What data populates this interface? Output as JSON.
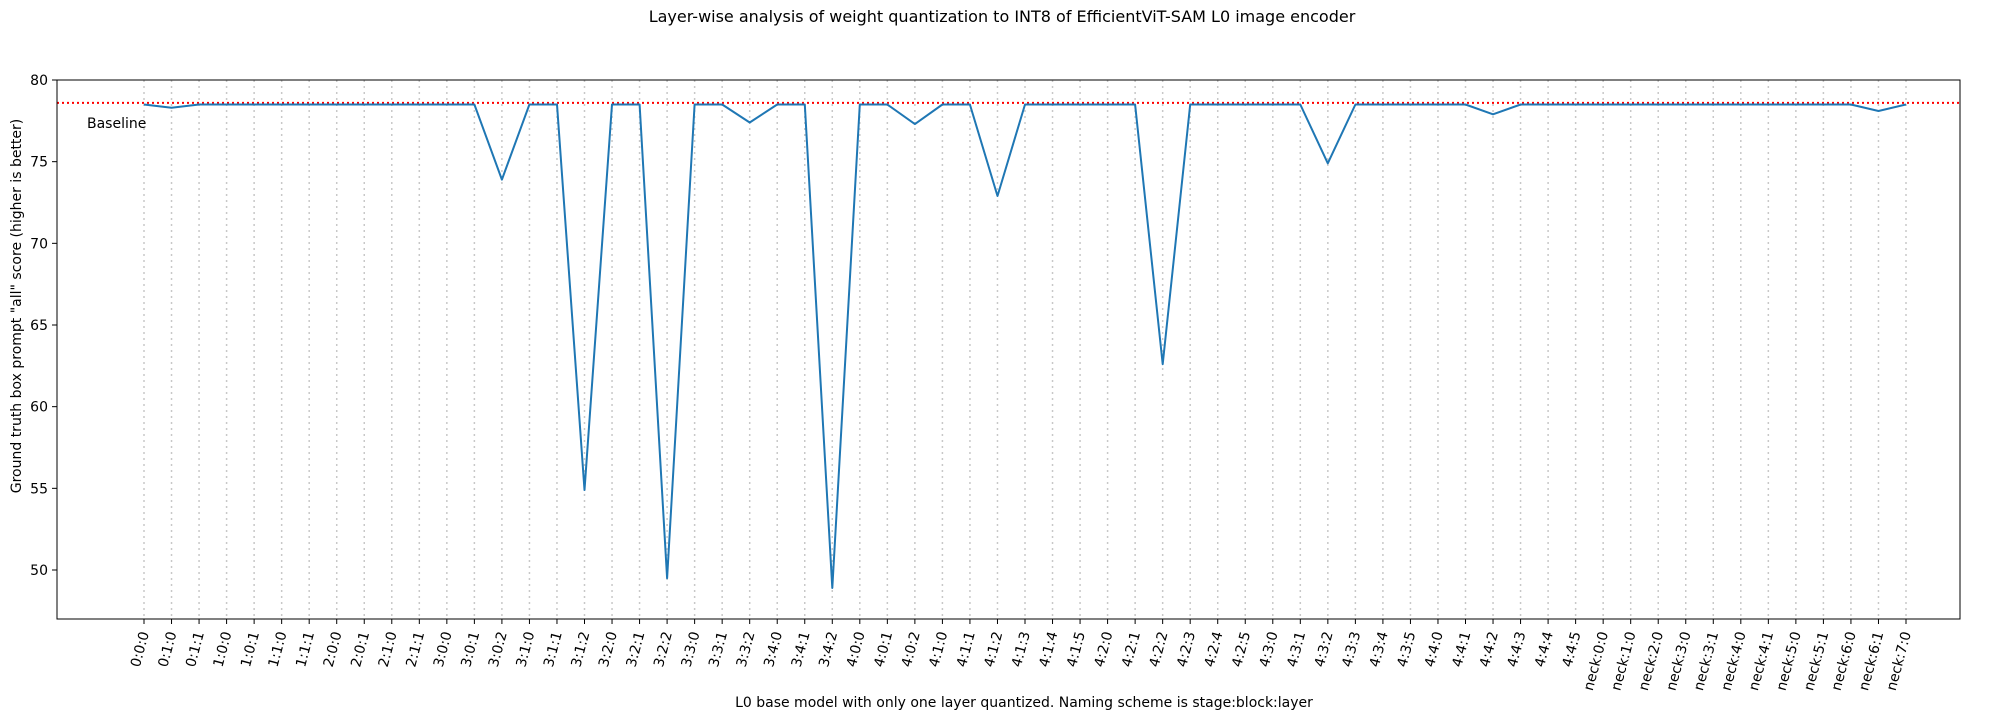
{
  "chart_data": {
    "type": "line",
    "title": "Layer-wise analysis of weight quantization to INT8 of EfficientViT-SAM L0 image encoder",
    "xlabel": "L0 base model with only one layer quantized. Naming scheme is stage:block:layer",
    "ylabel": "Ground truth box prompt \"all\" score (higher is better)",
    "ylim": [
      47,
      80
    ],
    "yticks": [
      50,
      55,
      60,
      65,
      70,
      75,
      80
    ],
    "grid": "vertical dotted at each x tick",
    "baseline": {
      "label": "Baseline",
      "value": 78.6,
      "color": "#ff0000",
      "style": "dotted"
    },
    "series_color": "#1f77b4",
    "categories": [
      "0:0:0",
      "0:1:0",
      "0:1:1",
      "1:0:0",
      "1:0:1",
      "1:1:0",
      "1:1:1",
      "2:0:0",
      "2:0:1",
      "2:1:0",
      "2:1:1",
      "3:0:0",
      "3:0:1",
      "3:0:2",
      "3:1:0",
      "3:1:1",
      "3:1:2",
      "3:2:0",
      "3:2:1",
      "3:2:2",
      "3:3:0",
      "3:3:1",
      "3:3:2",
      "3:4:0",
      "3:4:1",
      "3:4:2",
      "4:0:0",
      "4:0:1",
      "4:0:2",
      "4:1:0",
      "4:1:1",
      "4:1:2",
      "4:1:3",
      "4:1:4",
      "4:1:5",
      "4:2:0",
      "4:2:1",
      "4:2:2",
      "4:2:3",
      "4:2:4",
      "4:2:5",
      "4:3:0",
      "4:3:1",
      "4:3:2",
      "4:3:3",
      "4:3:4",
      "4:3:5",
      "4:4:0",
      "4:4:1",
      "4:4:2",
      "4:4:3",
      "4:4:4",
      "4:4:5",
      "neck:0:0",
      "neck:1:0",
      "neck:2:0",
      "neck:3:0",
      "neck:3:1",
      "neck:4:0",
      "neck:4:1",
      "neck:5:0",
      "neck:5:1",
      "neck:6:0",
      "neck:6:1",
      "neck:7:0"
    ],
    "series": [
      {
        "values": [
          78.5,
          78.3,
          78.5,
          78.5,
          78.5,
          78.5,
          78.5,
          78.5,
          78.5,
          78.5,
          78.5,
          78.5,
          78.5,
          73.9,
          78.5,
          78.5,
          54.9,
          78.5,
          78.5,
          49.5,
          78.5,
          78.5,
          77.4,
          78.5,
          78.5,
          48.9,
          78.5,
          78.5,
          77.3,
          78.5,
          78.5,
          72.9,
          78.5,
          78.5,
          78.5,
          78.5,
          78.5,
          62.6,
          78.5,
          78.5,
          78.5,
          78.5,
          78.5,
          74.9,
          78.5,
          78.5,
          78.5,
          78.5,
          78.5,
          77.9,
          78.5,
          78.5,
          78.5,
          78.5,
          78.5,
          78.5,
          78.5,
          78.5,
          78.5,
          78.5,
          78.5,
          78.5,
          78.5,
          78.1,
          78.5
        ]
      }
    ]
  }
}
